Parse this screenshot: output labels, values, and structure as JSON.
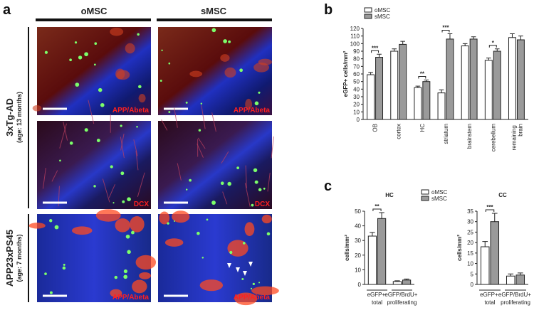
{
  "panel_a": {
    "label": "a",
    "columns": [
      "oMSC",
      "sMSC"
    ],
    "rows": [
      {
        "title": "3xTg-AD",
        "subtitle": "(age: 13 months)"
      },
      {
        "title": "APP23xPS45",
        "subtitle": "(age: 7 months)"
      }
    ],
    "image_labels": [
      "APP/Abeta",
      "APP/Abeta",
      "DCX",
      "DCX",
      "APP/Abeta",
      "APP/Abeta"
    ]
  },
  "panel_labels": [
    "b",
    "c"
  ],
  "chart_data": [
    {
      "type": "bar",
      "ylabel": "eGFP+ cells/mm²",
      "categories": [
        "OB",
        "cortex",
        "HC",
        "striatum",
        "brainstem",
        "cerebellum",
        "remaining brain"
      ],
      "series": [
        {
          "name": "oMSC",
          "color": "#ffffff",
          "values": [
            59,
            90,
            42,
            35,
            97,
            78,
            108
          ],
          "errors": [
            3,
            3,
            2,
            4,
            3,
            3,
            5
          ]
        },
        {
          "name": "sMSC",
          "color": "#9a9a9a",
          "values": [
            82,
            99,
            50,
            106,
            106,
            90,
            105
          ],
          "errors": [
            4,
            4,
            2,
            7,
            3,
            3,
            5
          ]
        }
      ],
      "significance": [
        "***",
        null,
        "**",
        "***",
        null,
        "*",
        null
      ],
      "ylim": [
        0,
        120
      ],
      "yticks": [
        0,
        10,
        20,
        30,
        40,
        50,
        60,
        70,
        80,
        90,
        100,
        110,
        120
      ],
      "legend": "upper-left"
    },
    {
      "type": "bar",
      "title": "HC",
      "ylabel": "cells/mm²",
      "categories": [
        "eGFP+ total",
        "eGFP/BrdU+ proliferating"
      ],
      "series": [
        {
          "name": "oMSC",
          "color": "#ffffff",
          "values": [
            33,
            2
          ],
          "errors": [
            2.5,
            0.5
          ]
        },
        {
          "name": "sMSC",
          "color": "#9a9a9a",
          "values": [
            45,
            3
          ],
          "errors": [
            4,
            0.7
          ]
        }
      ],
      "significance": [
        "**",
        null
      ],
      "ylim": [
        0,
        50
      ],
      "yticks": [
        0,
        10,
        20,
        30,
        40,
        50
      ],
      "legend": "upper-right"
    },
    {
      "type": "bar",
      "title": "CC",
      "ylabel": "cells/mm²",
      "categories": [
        "eGFP+ total",
        "eGFP/BrdU+ proliferating"
      ],
      "series": [
        {
          "color": "#ffffff",
          "values": [
            18,
            4
          ],
          "errors": [
            2.5,
            1
          ]
        },
        {
          "color": "#9a9a9a",
          "values": [
            30,
            4.5
          ],
          "errors": [
            4,
            1
          ]
        }
      ],
      "significance": [
        "***",
        null
      ],
      "ylim": [
        0,
        35
      ],
      "yticks": [
        0,
        5,
        10,
        15,
        20,
        25,
        30,
        35
      ]
    }
  ]
}
